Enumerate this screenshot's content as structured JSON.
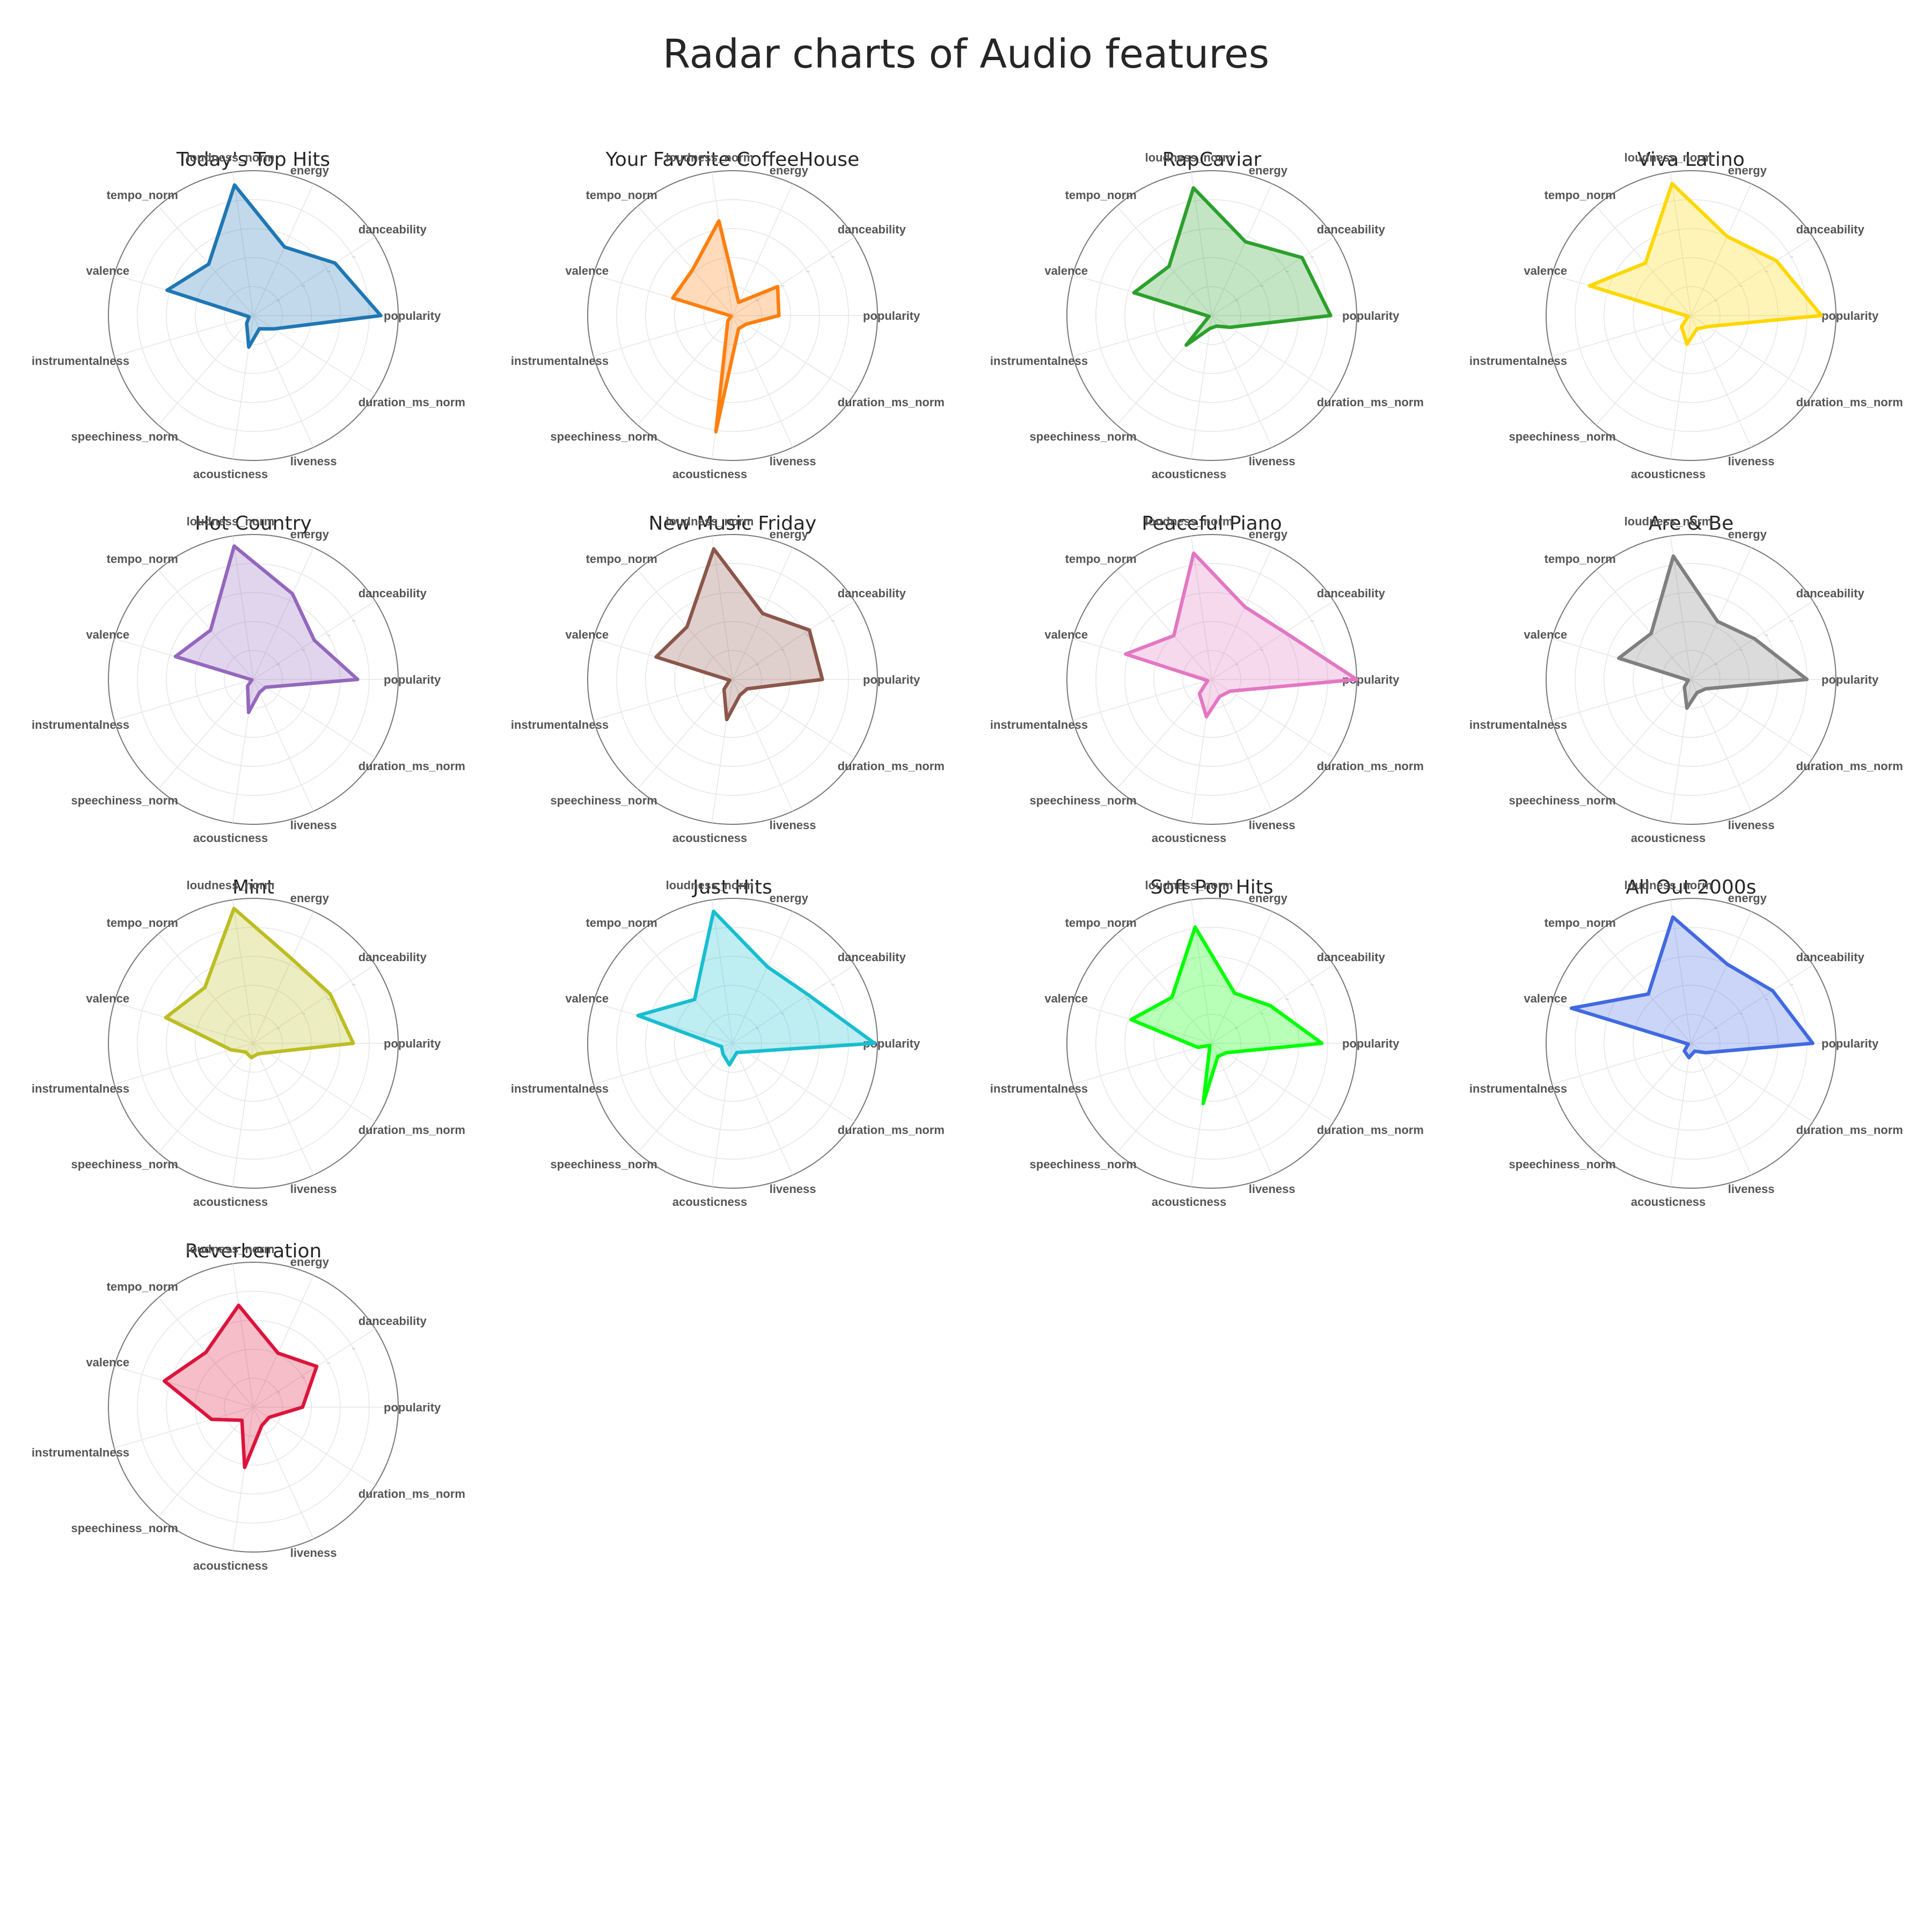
{
  "title": "Radar charts of Audio features",
  "chart_data": {
    "type": "radar",
    "axes": [
      "popularity",
      "danceability",
      "energy",
      "loudness_norm",
      "tempo_norm",
      "valence",
      "instrumentalness",
      "speechiness_norm",
      "acousticness",
      "liveness",
      "duration_ms_norm"
    ],
    "rlim": [
      0,
      1
    ],
    "rticks": [
      "0.2",
      "0.4",
      "0.6",
      "0.8",
      "1.0"
    ],
    "grid": true,
    "charts": [
      {
        "title": "Today's Top Hits",
        "color": "#1f77b4",
        "values": [
          0.88,
          0.67,
          0.52,
          0.91,
          0.47,
          0.62,
          0.03,
          0.07,
          0.22,
          0.1,
          0.17
        ]
      },
      {
        "title": "Your Favorite CoffeeHouse",
        "color": "#ff7f0e",
        "values": [
          0.32,
          0.37,
          0.1,
          0.66,
          0.42,
          0.43,
          0.01,
          0.05,
          0.81,
          0.1,
          0.11
        ]
      },
      {
        "title": "RapCaviar",
        "color": "#2ca02c",
        "values": [
          0.82,
          0.74,
          0.56,
          0.89,
          0.45,
          0.56,
          0.02,
          0.27,
          0.09,
          0.08,
          0.15
        ]
      },
      {
        "title": "Viva Latino",
        "color": "#ffd700",
        "values": [
          0.9,
          0.7,
          0.6,
          0.92,
          0.48,
          0.73,
          0.02,
          0.1,
          0.2,
          0.1,
          0.14
        ]
      },
      {
        "title": "Hot Country",
        "color": "#9467bd",
        "values": [
          0.72,
          0.5,
          0.65,
          0.93,
          0.45,
          0.56,
          0.01,
          0.06,
          0.23,
          0.1,
          0.1
        ]
      },
      {
        "title": "New Music Friday",
        "color": "#8c564b",
        "values": [
          0.62,
          0.63,
          0.5,
          0.91,
          0.48,
          0.55,
          0.02,
          0.09,
          0.28,
          0.12,
          0.12
        ]
      },
      {
        "title": "Peaceful Piano",
        "color": "#e377c2",
        "values": [
          1.0,
          0.6,
          0.55,
          0.88,
          0.4,
          0.62,
          0.03,
          0.13,
          0.26,
          0.13,
          0.15
        ]
      },
      {
        "title": "Are & Be",
        "color": "#7f7f7f",
        "values": [
          0.8,
          0.52,
          0.44,
          0.86,
          0.42,
          0.52,
          0.02,
          0.07,
          0.2,
          0.1,
          0.12
        ]
      },
      {
        "title": "Mint",
        "color": "#bcbd22",
        "values": [
          0.69,
          0.63,
          0.64,
          0.94,
          0.51,
          0.63,
          0.16,
          0.08,
          0.1,
          0.08,
          0.12
        ]
      },
      {
        "title": "Just Hits",
        "color": "#17becf",
        "values": [
          0.98,
          0.62,
          0.58,
          0.92,
          0.4,
          0.68,
          0.08,
          0.1,
          0.15,
          0.07,
          0.11
        ]
      },
      {
        "title": "Soft Pop Hits",
        "color": "#00ff00",
        "values": [
          0.76,
          0.48,
          0.38,
          0.81,
          0.42,
          0.58,
          0.1,
          0.02,
          0.42,
          0.1,
          0.12
        ]
      },
      {
        "title": "All Out 2000s",
        "color": "#4169e1",
        "values": [
          0.84,
          0.67,
          0.6,
          0.88,
          0.45,
          0.86,
          0.02,
          0.07,
          0.1,
          0.06,
          0.12
        ]
      },
      {
        "title": "Reverberation",
        "color": "#dc143c",
        "values": [
          0.34,
          0.52,
          0.41,
          0.71,
          0.5,
          0.64,
          0.3,
          0.12,
          0.42,
          0.14,
          0.13
        ]
      }
    ]
  }
}
